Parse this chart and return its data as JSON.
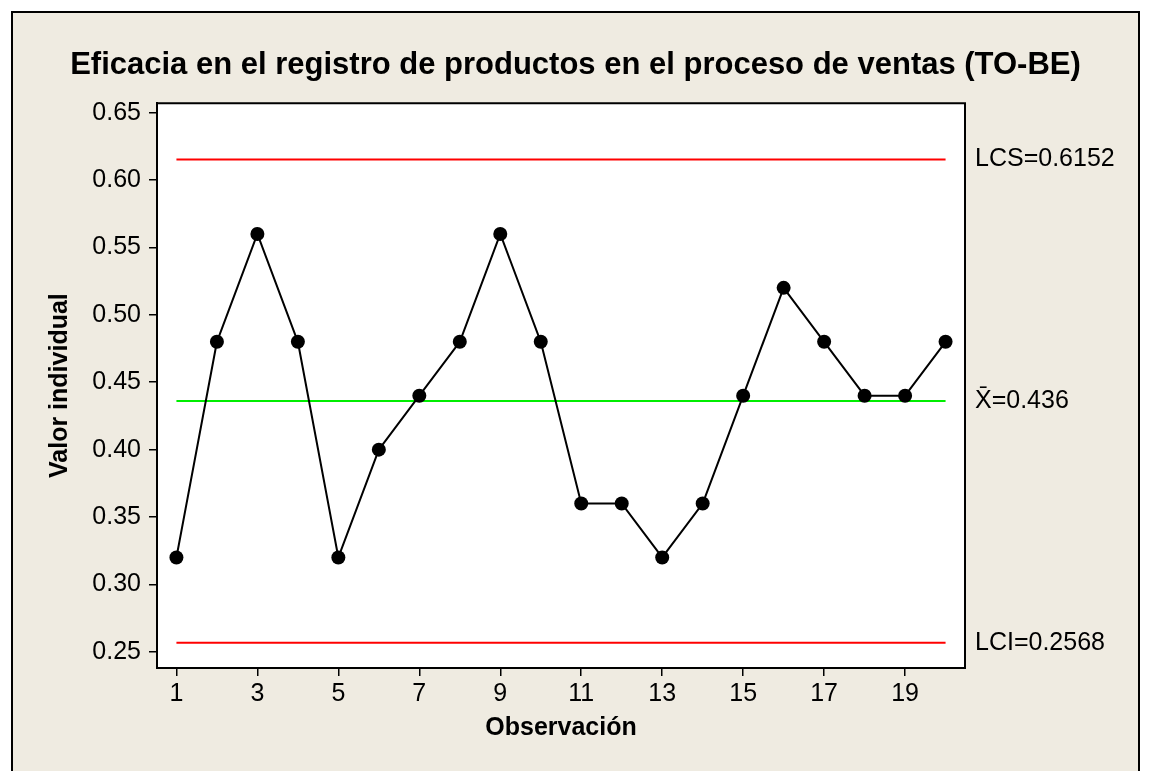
{
  "chart_data": {
    "type": "line",
    "title": "Eficacia en el registro de productos en el proceso de ventas (TO-BE)",
    "xlabel": "Observación",
    "ylabel": "Valor individual",
    "x": [
      1,
      2,
      3,
      4,
      5,
      6,
      7,
      8,
      9,
      10,
      11,
      12,
      13,
      14,
      15,
      16,
      17,
      18,
      19,
      20
    ],
    "series": [
      {
        "color": "#000000",
        "values": [
          0.32,
          0.48,
          0.56,
          0.48,
          0.32,
          0.4,
          0.44,
          0.48,
          0.56,
          0.48,
          0.36,
          0.36,
          0.32,
          0.36,
          0.44,
          0.52,
          0.48,
          0.44,
          0.44,
          0.48
        ]
      }
    ],
    "xlim": [
      0.52,
      20.48
    ],
    "ylim": [
      0.238,
      0.657
    ],
    "xticks": [
      1,
      3,
      5,
      7,
      9,
      11,
      13,
      15,
      17,
      19
    ],
    "yticks": [
      0.25,
      {
        "value": 0.3,
        "label": "0.30"
      },
      0.35,
      {
        "value": 0.4,
        "label": "0.40"
      },
      0.45,
      {
        "value": 0.5,
        "label": "0.50"
      },
      0.55,
      {
        "value": 0.6,
        "label": "0.60"
      },
      0.65
    ],
    "ref_lines": [
      {
        "axis": "y",
        "value": 0.6152,
        "label": "LCS=0.6152",
        "color": "#ff0000"
      },
      {
        "axis": "y",
        "value": 0.436,
        "label": "X̄=0.436",
        "color": "#00ee00"
      },
      {
        "axis": "y",
        "value": 0.2568,
        "label": "LCI=0.2568",
        "color": "#ff0000"
      }
    ],
    "grid": false,
    "legend": false,
    "marker": "circle",
    "line_style": "solid"
  }
}
